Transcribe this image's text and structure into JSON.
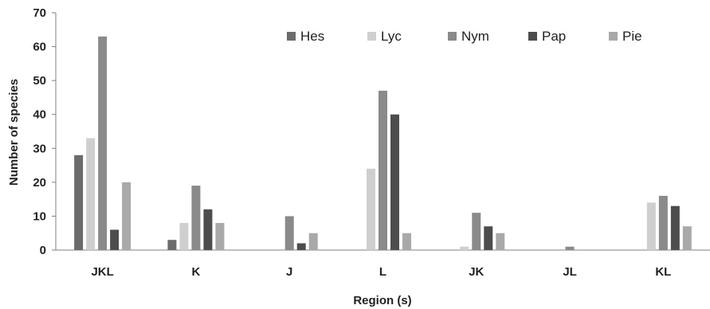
{
  "chart_data": {
    "type": "bar",
    "xlabel": "Region (s)",
    "ylabel": "Number  of species",
    "ylim": [
      0,
      70
    ],
    "yticks": [
      0,
      10,
      20,
      30,
      40,
      50,
      60,
      70
    ],
    "grid": false,
    "legend_position": "top-right",
    "categories": [
      "JKL",
      "K",
      "J",
      "L",
      "JK",
      "JL",
      "KL"
    ],
    "series": [
      {
        "name": "Hes",
        "color": "#6b6b6b",
        "values": [
          28,
          3,
          0,
          0,
          0,
          0,
          0
        ]
      },
      {
        "name": "Lyc",
        "color": "#cfcfcf",
        "values": [
          33,
          8,
          0,
          24,
          1,
          0,
          14
        ]
      },
      {
        "name": "Nym",
        "color": "#8a8a8a",
        "values": [
          63,
          19,
          10,
          47,
          11,
          1,
          16
        ]
      },
      {
        "name": "Pap",
        "color": "#4d4d4d",
        "values": [
          6,
          12,
          2,
          40,
          7,
          0,
          13
        ]
      },
      {
        "name": "Pie",
        "color": "#a9a9a9",
        "values": [
          20,
          8,
          5,
          5,
          5,
          0,
          7
        ]
      }
    ]
  }
}
